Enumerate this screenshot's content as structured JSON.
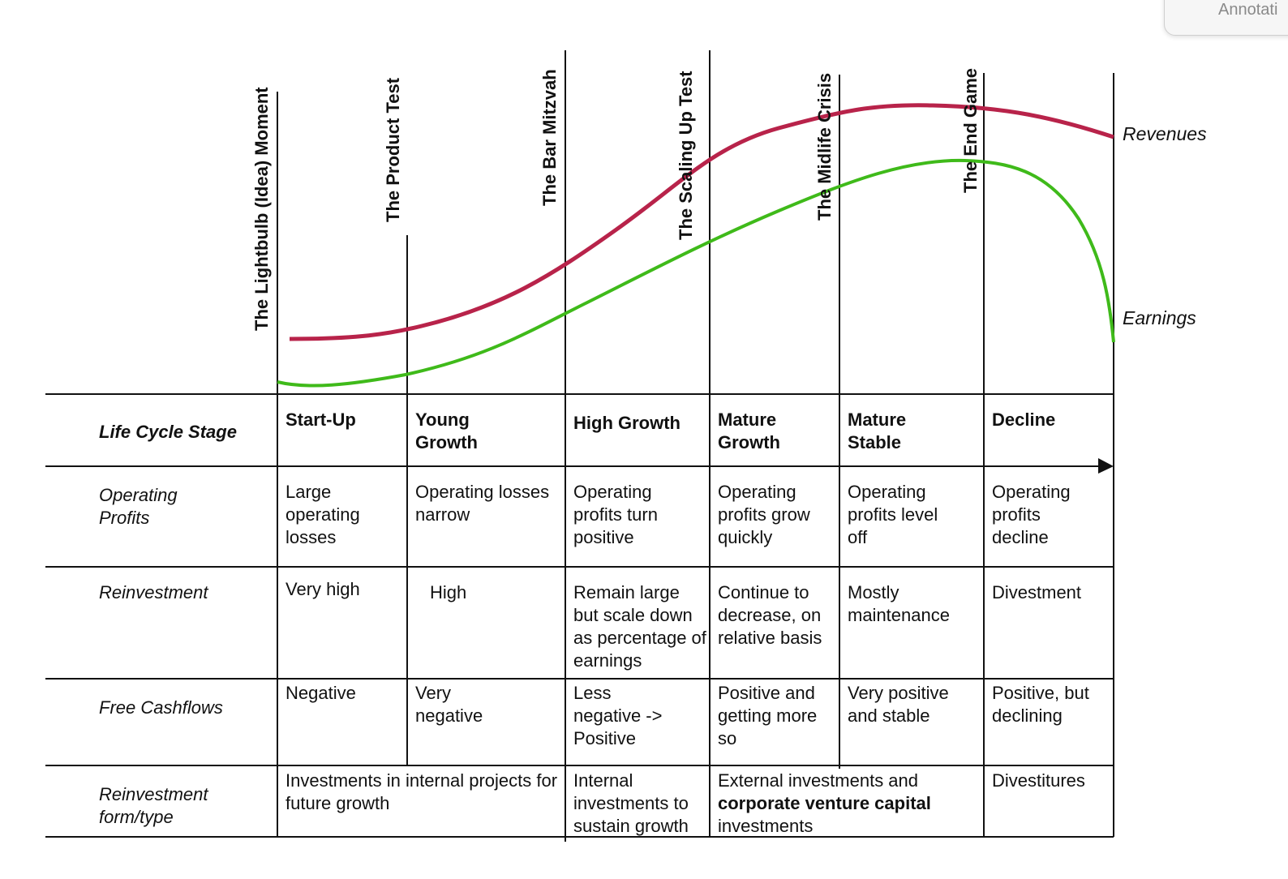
{
  "popup_label": "Annotati",
  "milestones": [
    "The Lightbulb (Idea) Moment",
    "The Product Test",
    "The Bar Mitzvah",
    "The Scaling Up Test",
    "The Midlife Crisis",
    "The End Game"
  ],
  "curves": {
    "revenues_label": "Revenues",
    "earnings_label": "Earnings",
    "revenues_color": "#b8234a",
    "earnings_color": "#3fba1a"
  },
  "row_labels": {
    "stage": "Life Cycle Stage",
    "operating_profits": "Operating Profits",
    "reinvestment": "Reinvestment",
    "free_cashflows": "Free Cashflows",
    "reinvestment_form": "Reinvestment form/type"
  },
  "stages": [
    "Start-Up",
    "Young Growth",
    "High Growth",
    "Mature Growth",
    "Mature Stable",
    "Decline"
  ],
  "operating_profits": [
    "Large operating losses",
    "Operating losses narrow",
    "Operating profits turn positive",
    "Operating profits grow quickly",
    "Operating profits level off",
    "Operating profits decline"
  ],
  "reinvestment": [
    "Very high",
    "High",
    "Remain large but scale down as percentage of earnings",
    "Continue to decrease, on relative basis",
    "Mostly maintenance",
    "Divestment"
  ],
  "free_cashflows": [
    "Negative",
    "Very negative",
    "Less negative -> Positive",
    "Positive and getting more so",
    "Very positive and stable",
    "Positive, but declining"
  ],
  "reinvestment_form": {
    "internal_future": "Investments in internal projects for future growth",
    "internal_sustain": "Internal investments to sustain growth",
    "external_prefix": "External investments and",
    "external_bold": "corporate venture capital",
    "external_suffix": "investments",
    "divestitures": "Divestitures"
  }
}
